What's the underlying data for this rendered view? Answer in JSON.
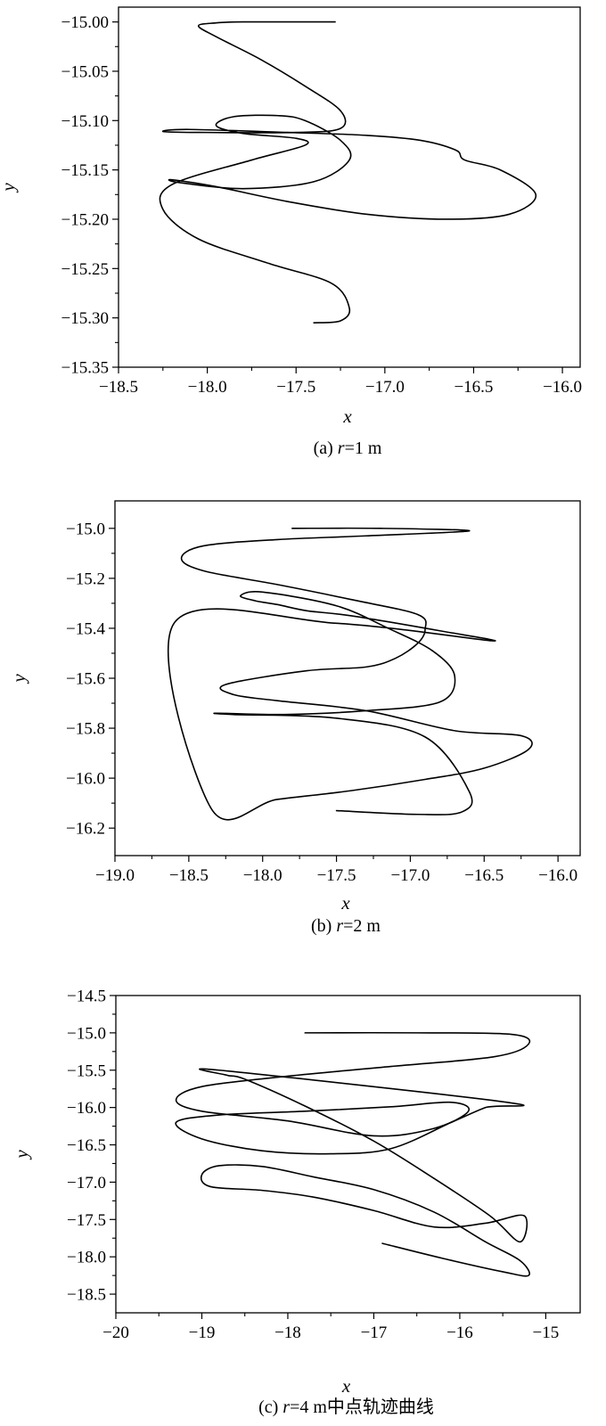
{
  "chart_data": [
    {
      "type": "line",
      "caption": "(a) r=1 m",
      "caption_parts": {
        "prefix": "(a) ",
        "var": "r",
        "suffix": "=1 m"
      },
      "xlabel": "x",
      "ylabel": "y",
      "xlim": [
        -18.5,
        -15.9
      ],
      "ylim": [
        -15.35,
        -14.985
      ],
      "xticks": [
        -18.5,
        -18.0,
        -17.5,
        -17.0,
        -16.5,
        -16.0
      ],
      "xtick_labels": [
        "−18.5",
        "−18.0",
        "−17.5",
        "−17.0",
        "−16.5",
        "−16.0"
      ],
      "yticks": [
        -15.0,
        -15.05,
        -15.1,
        -15.15,
        -15.2,
        -15.25,
        -15.3,
        -15.35
      ],
      "ytick_labels": [
        "−15.00",
        "−15.05",
        "−15.10",
        "−15.15",
        "−15.20",
        "−15.25",
        "−15.30",
        "−15.35"
      ],
      "grid": false,
      "series": [
        {
          "x": [
            -17.28,
            -17.8,
            -17.95,
            -18.05,
            -17.95,
            -17.7,
            -17.45,
            -17.25,
            -17.25,
            -17.5,
            -18.05,
            -18.25,
            -18.1,
            -17.55,
            -17.1,
            -16.8,
            -16.6,
            -16.55,
            -16.35,
            -16.15,
            -16.3,
            -16.65,
            -17.1,
            -17.55,
            -17.95,
            -18.2,
            -18.15,
            -17.8,
            -17.4,
            -17.2,
            -17.25,
            -17.45,
            -17.6,
            -17.85,
            -17.95,
            -17.8,
            -17.5,
            -17.45,
            -17.75,
            -18.2,
            -18.25,
            -18.05,
            -17.65,
            -17.3,
            -17.2,
            -17.25,
            -17.4
          ],
          "y": [
            -15.0,
            -15.0,
            -15.001,
            -15.004,
            -15.015,
            -15.038,
            -15.065,
            -15.09,
            -15.108,
            -15.112,
            -15.112,
            -15.111,
            -15.109,
            -15.112,
            -15.115,
            -15.12,
            -15.13,
            -15.14,
            -15.15,
            -15.175,
            -15.195,
            -15.2,
            -15.195,
            -15.182,
            -15.167,
            -15.16,
            -15.163,
            -15.169,
            -15.162,
            -15.14,
            -15.12,
            -15.1,
            -15.095,
            -15.096,
            -15.105,
            -15.113,
            -15.118,
            -15.125,
            -15.14,
            -15.165,
            -15.19,
            -15.22,
            -15.245,
            -15.265,
            -15.29,
            -15.303,
            -15.305
          ]
        }
      ]
    },
    {
      "type": "line",
      "caption": "(b) r=2 m",
      "caption_parts": {
        "prefix": "(b) ",
        "var": "r",
        "suffix": "=2 m"
      },
      "xlabel": "x",
      "ylabel": "y",
      "xlim": [
        -19.0,
        -15.85
      ],
      "ylim": [
        -16.31,
        -14.89
      ],
      "xticks": [
        -19.0,
        -18.5,
        -18.0,
        -17.5,
        -17.0,
        -16.5,
        -16.0
      ],
      "xtick_labels": [
        "−19.0",
        "−18.5",
        "−18.0",
        "−17.5",
        "−17.0",
        "−16.5",
        "−16.0"
      ],
      "yticks": [
        -15.0,
        -15.2,
        -15.4,
        -15.6,
        -15.8,
        -16.0,
        -16.2
      ],
      "ytick_labels": [
        "−15.0",
        "−15.2",
        "−15.4",
        "−15.6",
        "−15.8",
        "−16.0",
        "−16.2"
      ],
      "grid": false,
      "series": [
        {
          "x": [
            -17.8,
            -17.2,
            -16.6,
            -17.3,
            -17.9,
            -18.4,
            -18.55,
            -18.4,
            -17.9,
            -17.4,
            -16.95,
            -16.9,
            -16.95,
            -17.1,
            -17.3,
            -17.7,
            -18.25,
            -18.2,
            -17.9,
            -17.3,
            -16.7,
            -16.25,
            -16.2,
            -16.5,
            -16.9,
            -17.4,
            -17.9,
            -18.35,
            -18.6,
            -17.5,
            -16.45,
            -16.8,
            -17.4,
            -17.7,
            -17.9,
            -18.05,
            -18.15,
            -18.0,
            -17.5,
            -17.15,
            -16.85,
            -16.7,
            -16.8,
            -17.3,
            -17.85,
            -18.3,
            -18.2,
            -17.5,
            -16.9,
            -16.6,
            -16.65,
            -16.95,
            -17.5
          ],
          "y": [
            -15.0,
            -15.0,
            -15.01,
            -15.03,
            -15.045,
            -15.07,
            -15.12,
            -15.17,
            -15.225,
            -15.285,
            -15.345,
            -15.405,
            -15.46,
            -15.52,
            -15.555,
            -15.57,
            -15.625,
            -15.665,
            -15.69,
            -15.73,
            -15.81,
            -15.83,
            -15.885,
            -15.96,
            -16.005,
            -16.05,
            -16.085,
            -16.12,
            -15.38,
            -15.38,
            -15.45,
            -15.41,
            -15.35,
            -15.33,
            -15.305,
            -15.29,
            -15.27,
            -15.255,
            -15.31,
            -15.4,
            -15.49,
            -15.59,
            -15.695,
            -15.73,
            -15.745,
            -15.74,
            -15.745,
            -15.76,
            -15.835,
            -16.055,
            -16.135,
            -16.145,
            -16.13
          ]
        }
      ]
    },
    {
      "type": "line",
      "caption": "(c) r=4 m中点轨迹曲线",
      "caption_parts": {
        "prefix": "(c) ",
        "var": "r",
        "suffix": "=4 m中点轨迹曲线"
      },
      "xlabel": "x",
      "ylabel": "y",
      "xlim": [
        -20.0,
        -14.6
      ],
      "ylim": [
        -18.75,
        -14.5
      ],
      "xticks": [
        -20,
        -19,
        -18,
        -17,
        -16,
        -15
      ],
      "xtick_labels": [
        "−20",
        "−19",
        "−18",
        "−17",
        "−16",
        "−15"
      ],
      "yticks": [
        -14.5,
        -15.0,
        -15.5,
        -16.0,
        -16.5,
        -17.0,
        -17.5,
        -18.0,
        -18.5
      ],
      "ytick_labels": [
        "−14.5",
        "−15.0",
        "−15.5",
        "−16.0",
        "−16.5",
        "−17.0",
        "−17.5",
        "−18.0",
        "−18.5"
      ],
      "grid": false,
      "series": [
        {
          "x": [
            -17.8,
            -16.5,
            -15.4,
            -15.2,
            -15.6,
            -16.8,
            -18.0,
            -19.0,
            -19.3,
            -19.0,
            -18.0,
            -17.0,
            -16.3,
            -15.9,
            -16.1,
            -16.8,
            -17.8,
            -18.8,
            -19.3,
            -19.0,
            -18.3,
            -17.5,
            -16.8,
            -16.1,
            -15.7,
            -15.45,
            -18.8,
            -18.7,
            -18.5,
            -17.8,
            -17.0,
            -16.3,
            -15.65,
            -15.3,
            -15.25,
            -15.7,
            -16.3,
            -17.0,
            -17.7,
            -18.3,
            -18.9,
            -19.0,
            -18.8,
            -18.3,
            -17.7,
            -17.0,
            -16.3,
            -15.7,
            -15.3,
            -15.2,
            -15.5,
            -16.2,
            -16.9
          ],
          "y": [
            -15.0,
            -15.0,
            -15.02,
            -15.15,
            -15.32,
            -15.45,
            -15.58,
            -15.72,
            -15.9,
            -16.05,
            -16.18,
            -16.38,
            -16.28,
            -16.05,
            -15.93,
            -15.99,
            -16.05,
            -16.1,
            -16.2,
            -16.42,
            -16.58,
            -16.62,
            -16.55,
            -16.2,
            -16.0,
            -15.93,
            -15.5,
            -15.57,
            -15.62,
            -15.98,
            -16.45,
            -16.95,
            -17.45,
            -17.8,
            -17.45,
            -17.55,
            -17.6,
            -17.38,
            -17.2,
            -17.11,
            -17.06,
            -16.9,
            -16.78,
            -16.79,
            -16.93,
            -17.1,
            -17.4,
            -17.8,
            -18.05,
            -18.25,
            -18.2,
            -18.02,
            -17.82
          ]
        }
      ]
    }
  ]
}
